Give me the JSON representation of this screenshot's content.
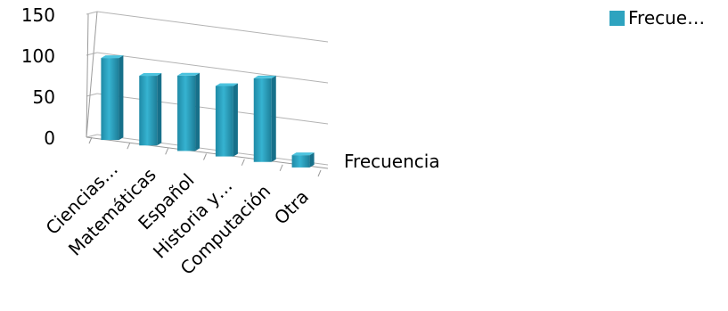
{
  "chart_data": {
    "type": "bar",
    "title": "",
    "xlabel": "Frecuencia",
    "ylabel": "",
    "categories": [
      "Ciencias…",
      "Matemáticas",
      "Español",
      "Historia y…",
      "Computación",
      "Otra"
    ],
    "series": [
      {
        "name": "Frecue…",
        "values": [
          100,
          85,
          92,
          86,
          102,
          15
        ],
        "color": "#2ea3bf"
      }
    ],
    "ylim": [
      0,
      150
    ],
    "yticks": [
      "0",
      "50",
      "100",
      "150"
    ],
    "grid": true,
    "legend_position": "top-right",
    "projection": "3d"
  }
}
